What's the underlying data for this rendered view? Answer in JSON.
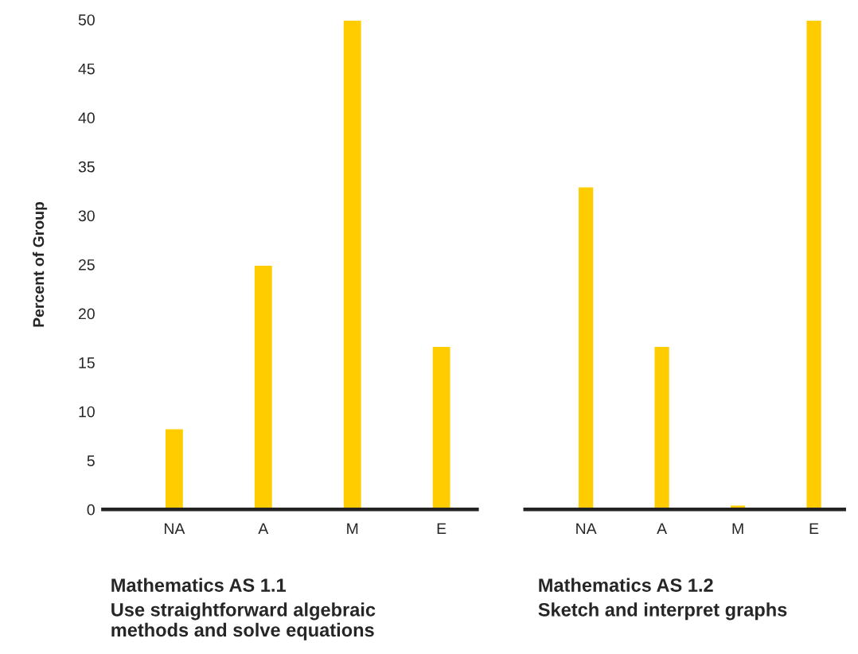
{
  "chart_data": [
    {
      "type": "bar",
      "title": "Mathematics AS 1.1",
      "subtitle": "Use straightforward algebraic\nmethods and solve equations",
      "ylabel": "Percent of Group",
      "categories": [
        "NA",
        "A",
        "M",
        "E"
      ],
      "values": [
        8.3,
        25,
        50,
        16.7
      ],
      "color": "#ffcc00",
      "ylim": [
        0,
        50
      ],
      "yticks": [
        0,
        5,
        10,
        15,
        20,
        25,
        30,
        35,
        40,
        45,
        50
      ],
      "grid": false
    },
    {
      "type": "bar",
      "title": "Mathematics AS 1.2",
      "subtitle": "Sketch and interpret graphs",
      "categories": [
        "NA",
        "A",
        "M",
        "E"
      ],
      "values": [
        33,
        16.7,
        0.5,
        50
      ],
      "color": "#ffcc00",
      "ylim": [
        0,
        50
      ],
      "yticks": [
        0,
        5,
        10,
        15,
        20,
        25,
        30,
        35,
        40,
        45,
        50
      ],
      "tick_labels": "x",
      "grid": false
    }
  ]
}
